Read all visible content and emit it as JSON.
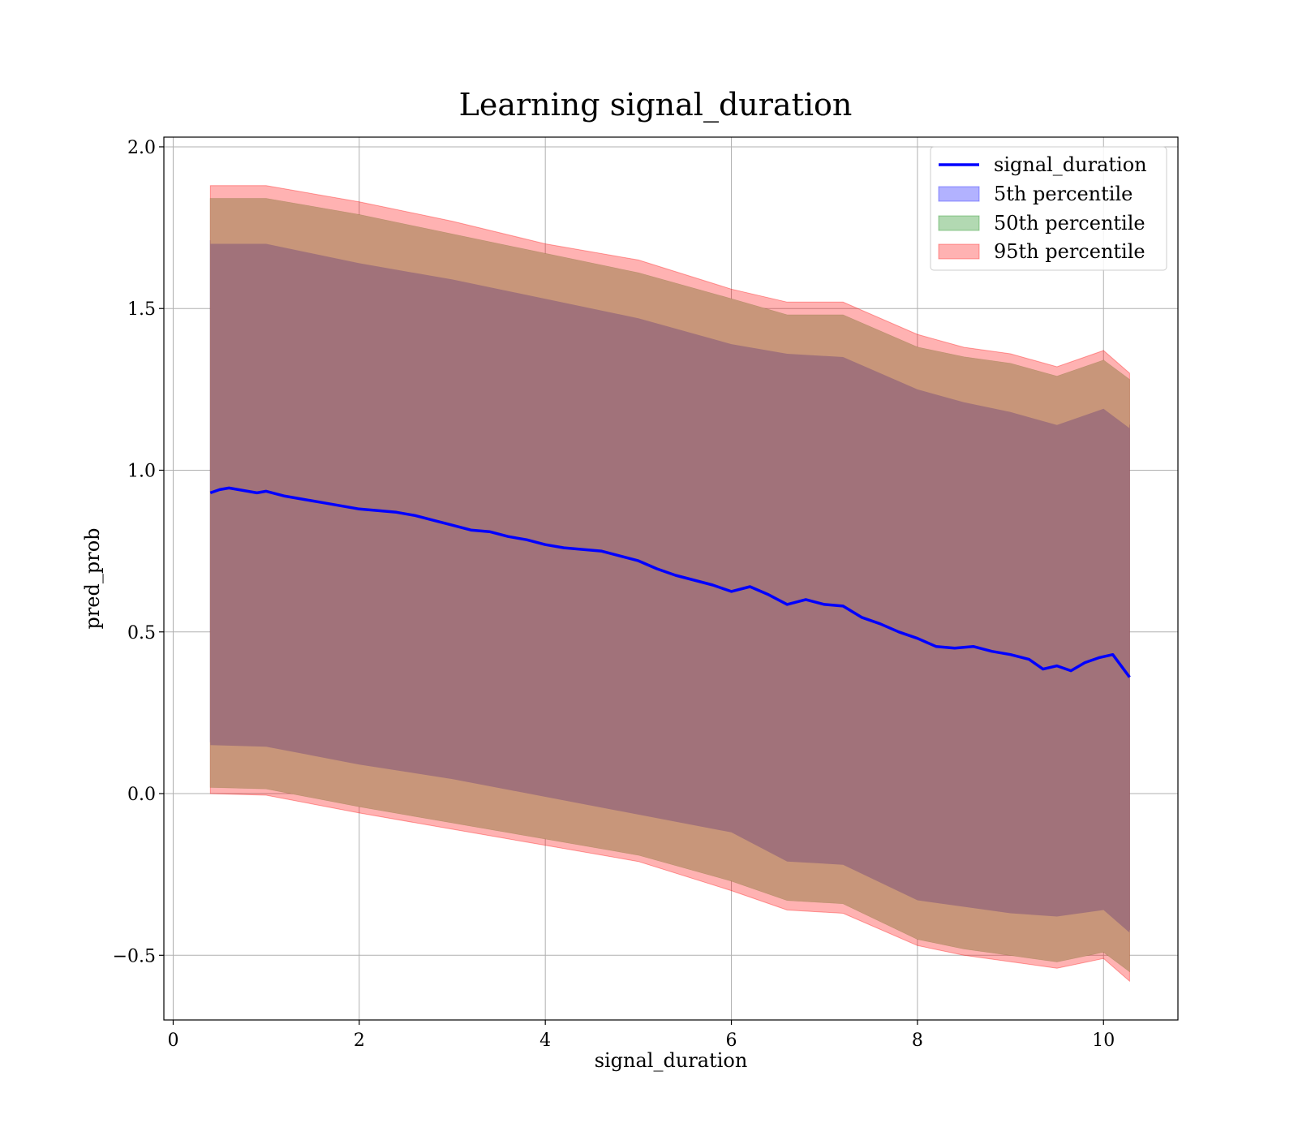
{
  "chart_data": {
    "type": "area",
    "title": "Learning signal_duration",
    "xlabel": "signal_duration",
    "ylabel": "pred_prob",
    "xlim": [
      -0.1,
      10.8
    ],
    "ylim": [
      -0.7,
      2.03
    ],
    "xticks": [
      0,
      2,
      4,
      6,
      8,
      10
    ],
    "xtick_labels": [
      "0",
      "2",
      "4",
      "6",
      "8",
      "10"
    ],
    "yticks": [
      -0.5,
      0.0,
      0.5,
      1.0,
      1.5,
      2.0
    ],
    "ytick_labels": [
      "−0.5",
      "0.0",
      "0.5",
      "1.0",
      "1.5",
      "2.0"
    ],
    "grid": true,
    "legend_position": "top-right",
    "line": {
      "name": "signal_duration",
      "color": "#0000ff",
      "x": [
        0.4,
        0.5,
        0.6,
        0.7,
        0.8,
        0.9,
        1.0,
        1.2,
        1.4,
        1.6,
        1.8,
        2.0,
        2.2,
        2.4,
        2.6,
        2.8,
        3.0,
        3.2,
        3.4,
        3.6,
        3.8,
        4.0,
        4.2,
        4.4,
        4.6,
        4.8,
        5.0,
        5.2,
        5.4,
        5.6,
        5.8,
        6.0,
        6.2,
        6.4,
        6.6,
        6.8,
        7.0,
        7.2,
        7.4,
        7.6,
        7.8,
        8.0,
        8.2,
        8.4,
        8.6,
        8.8,
        9.0,
        9.2,
        9.35,
        9.5,
        9.65,
        9.8,
        9.95,
        10.1,
        10.28
      ],
      "y": [
        0.93,
        0.94,
        0.945,
        0.94,
        0.935,
        0.93,
        0.935,
        0.92,
        0.91,
        0.9,
        0.89,
        0.88,
        0.875,
        0.87,
        0.86,
        0.845,
        0.83,
        0.815,
        0.81,
        0.795,
        0.785,
        0.77,
        0.76,
        0.755,
        0.75,
        0.735,
        0.72,
        0.695,
        0.675,
        0.66,
        0.645,
        0.625,
        0.64,
        0.615,
        0.585,
        0.6,
        0.585,
        0.58,
        0.545,
        0.525,
        0.5,
        0.48,
        0.455,
        0.45,
        0.455,
        0.44,
        0.43,
        0.415,
        0.385,
        0.395,
        0.38,
        0.405,
        0.42,
        0.43,
        0.36
      ]
    },
    "bands": [
      {
        "name": "5th percentile",
        "color": "#0000ff",
        "x": [
          0.4,
          1.0,
          2.0,
          3.0,
          4.0,
          5.0,
          6.0,
          6.6,
          7.2,
          8.0,
          8.5,
          9.0,
          9.5,
          10.0,
          10.28
        ],
        "upper": [
          1.71,
          1.71,
          1.65,
          1.6,
          1.54,
          1.48,
          1.4,
          1.37,
          1.36,
          1.26,
          1.22,
          1.19,
          1.15,
          1.2,
          1.14
        ],
        "lower": [
          0.16,
          0.155,
          0.1,
          0.055,
          0.0,
          -0.055,
          -0.11,
          -0.2,
          -0.21,
          -0.32,
          -0.34,
          -0.36,
          -0.37,
          -0.35,
          -0.42
        ]
      },
      {
        "name": "50th percentile",
        "color": "#008000",
        "x": [
          0.4,
          1.0,
          2.0,
          3.0,
          4.0,
          5.0,
          6.0,
          6.6,
          7.2,
          8.0,
          8.5,
          9.0,
          9.5,
          10.0,
          10.28
        ],
        "upper": [
          1.84,
          1.84,
          1.79,
          1.73,
          1.67,
          1.61,
          1.53,
          1.48,
          1.48,
          1.38,
          1.35,
          1.33,
          1.29,
          1.34,
          1.28
        ],
        "lower": [
          0.02,
          0.015,
          -0.04,
          -0.09,
          -0.14,
          -0.19,
          -0.27,
          -0.33,
          -0.34,
          -0.45,
          -0.48,
          -0.5,
          -0.52,
          -0.49,
          -0.55
        ]
      },
      {
        "name": "95th percentile",
        "color": "#ff0000",
        "x": [
          0.4,
          1.0,
          2.0,
          3.0,
          4.0,
          5.0,
          6.0,
          6.6,
          7.2,
          8.0,
          8.5,
          9.0,
          9.5,
          10.0,
          10.28
        ],
        "upper": [
          1.88,
          1.88,
          1.83,
          1.77,
          1.7,
          1.65,
          1.56,
          1.52,
          1.52,
          1.42,
          1.38,
          1.36,
          1.32,
          1.37,
          1.3
        ],
        "lower": [
          0.0,
          -0.005,
          -0.06,
          -0.11,
          -0.16,
          -0.21,
          -0.3,
          -0.36,
          -0.37,
          -0.47,
          -0.5,
          -0.52,
          -0.54,
          -0.51,
          -0.58
        ]
      }
    ],
    "overlap_fill": {
      "color": "#a1727a",
      "x": [
        0.4,
        1.0,
        2.0,
        3.0,
        4.0,
        5.0,
        6.0,
        6.6,
        7.2,
        8.0,
        8.5,
        9.0,
        9.5,
        10.0,
        10.28
      ],
      "upper": [
        1.7,
        1.7,
        1.64,
        1.59,
        1.53,
        1.47,
        1.39,
        1.36,
        1.35,
        1.25,
        1.21,
        1.18,
        1.14,
        1.19,
        1.13
      ],
      "lower": [
        0.15,
        0.145,
        0.09,
        0.045,
        -0.01,
        -0.065,
        -0.12,
        -0.21,
        -0.22,
        -0.33,
        -0.35,
        -0.37,
        -0.38,
        -0.36,
        -0.43
      ]
    },
    "overlap_outer": {
      "color": "#c8967a",
      "x": [
        0.4,
        1.0,
        2.0,
        3.0,
        4.0,
        5.0,
        6.0,
        6.6,
        7.2,
        8.0,
        8.5,
        9.0,
        9.5,
        10.0,
        10.28
      ],
      "upper": [
        1.84,
        1.84,
        1.79,
        1.73,
        1.67,
        1.61,
        1.53,
        1.48,
        1.48,
        1.38,
        1.35,
        1.33,
        1.29,
        1.34,
        1.28
      ],
      "lower": [
        0.02,
        0.015,
        -0.04,
        -0.09,
        -0.14,
        -0.19,
        -0.27,
        -0.33,
        -0.34,
        -0.45,
        -0.48,
        -0.5,
        -0.52,
        -0.49,
        -0.55
      ]
    }
  }
}
